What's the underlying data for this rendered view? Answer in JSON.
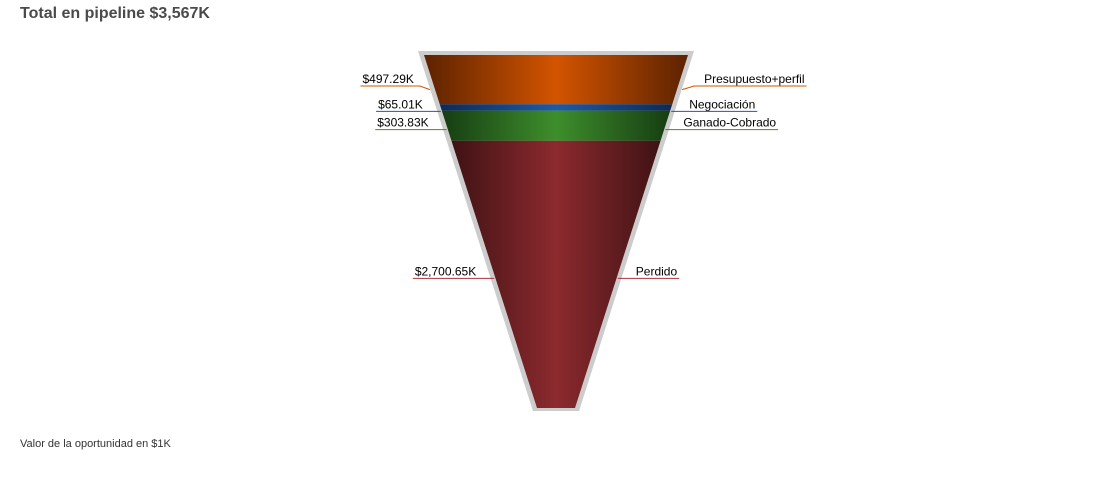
{
  "title": "Total en pipeline $3,567K",
  "footnote": "Valor de la oportunidad en $1K",
  "chart_data": {
    "type": "funnel",
    "title": "Total en pipeline $3,567K",
    "unit": "$1K",
    "stages": [
      {
        "name": "Presupuesto+perfil",
        "value": 497.29,
        "value_label": "$497.29K",
        "color": "#d35400",
        "edge_color": "#5c2200",
        "line_color": "#d35400"
      },
      {
        "name": "Negociación",
        "value": 65.01,
        "value_label": "$65.01K",
        "color": "#1f5aa6",
        "edge_color": "#0d2a55",
        "line_color": "#1f5aa6"
      },
      {
        "name": "Ganado-Cobrado",
        "value": 303.83,
        "value_label": "$303.83K",
        "color": "#3e8e2c",
        "edge_color": "#163d12",
        "line_color": "#3e8e2c"
      },
      {
        "name": "Perdido",
        "value": 2700.65,
        "value_label": "$2,700.65K",
        "color": "#8c2a2e",
        "edge_color": "#3f1214",
        "line_color": "#b0303a"
      }
    ],
    "border_color": "#cccccc"
  }
}
